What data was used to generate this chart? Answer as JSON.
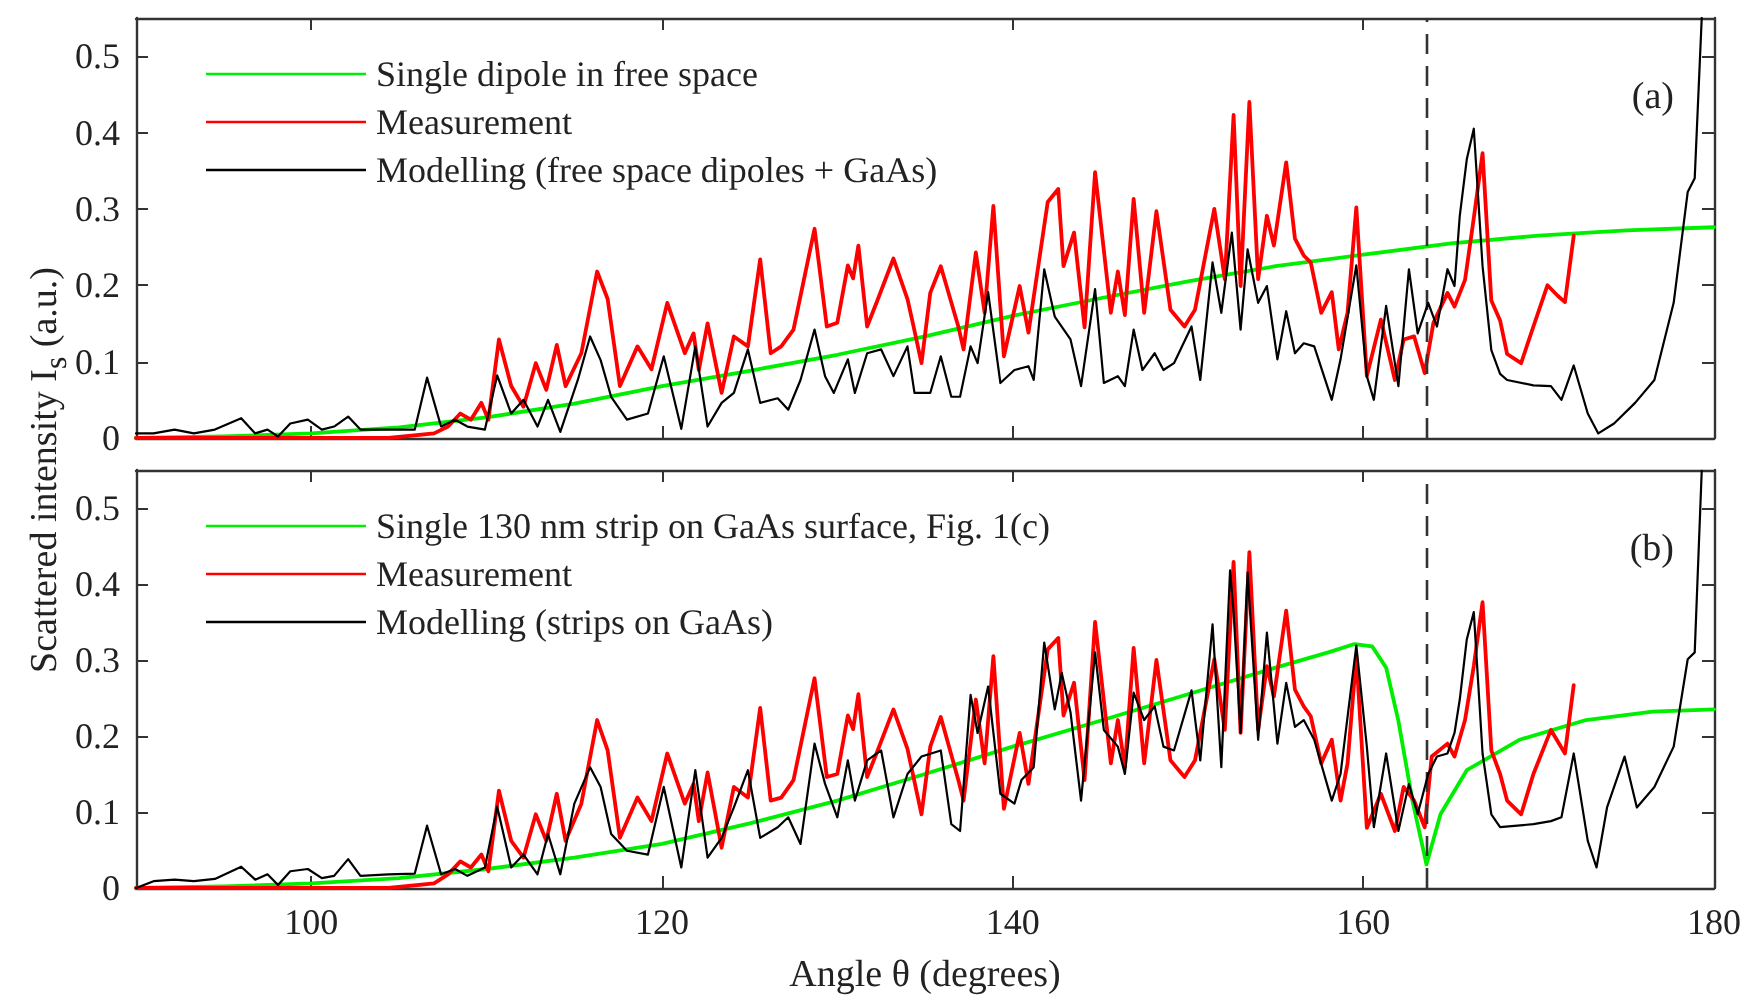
{
  "chart_data": [
    {
      "type": "line",
      "ylabel": "Scattered intensity I$_{s}$ (a.u.)",
      "annotations": [
        "(a)"
      ],
      "xlim": [
        90,
        180
      ],
      "xticks": [
        100,
        120,
        140,
        160,
        180
      ],
      "ylim": [
        0,
        0.55
      ],
      "yticks": [
        0,
        0.1,
        0.2,
        0.3,
        0.4,
        0.5
      ],
      "tick_labels": "y",
      "grid": false,
      "legend": "top left",
      "marker": "none",
      "line_style": "solid",
      "ref_lines": [
        {
          "axis": "x",
          "value": 163.6,
          "color": "#333333",
          "line_style": "dashed"
        }
      ],
      "series": [
        {
          "name": "Single dipole in free space",
          "color": "#00ee00",
          "x": [
            90,
            95,
            100,
            105,
            110,
            115,
            120,
            125,
            130,
            135,
            140,
            145,
            150,
            155,
            160,
            165,
            170,
            175,
            180
          ],
          "values": [
            0,
            0.002,
            0.006,
            0.014,
            0.027,
            0.045,
            0.068,
            0.088,
            0.109,
            0.133,
            0.16,
            0.183,
            0.205,
            0.225,
            0.24,
            0.255,
            0.265,
            0.272,
            0.276
          ]
        },
        {
          "name": "Measurement",
          "color": "#ff0000",
          "x": [
            90,
            104.4,
            107,
            107.8,
            108.5,
            109.1,
            109.7,
            110.1,
            110.7,
            111.4,
            112.1,
            112.8,
            113.4,
            114,
            114.5,
            115.4,
            116.3,
            116.9,
            117.6,
            118.6,
            119.4,
            120.3,
            121.3,
            121.8,
            122.1,
            122.6,
            123.4,
            124.1,
            124.9,
            125.6,
            126.2,
            126.8,
            127.5,
            128.7,
            129.4,
            130,
            130.6,
            130.9,
            131.2,
            131.7,
            132.3,
            133.2,
            134,
            134.3,
            134.8,
            135.3,
            135.9,
            136.9,
            137.2,
            137.9,
            138.4,
            138.9,
            139.5,
            140.4,
            140.9,
            142,
            142.6,
            142.9,
            143.5,
            144.1,
            144.7,
            145.6,
            146,
            146.4,
            146.9,
            147.5,
            148.2,
            149,
            149.8,
            150.4,
            151.5,
            152.1,
            152.6,
            153,
            153.5,
            154,
            154.5,
            154.9,
            155.6,
            156.1,
            156.6,
            157,
            157.6,
            158.2,
            158.6,
            159.1,
            159.6,
            160.2,
            161,
            161.8,
            162.3,
            162.9,
            163.5,
            164,
            164.8,
            165.2,
            165.8,
            166.3,
            166.8,
            167.3,
            167.8,
            168.2,
            169,
            169.7,
            170.5,
            171.1,
            171.5,
            172
          ],
          "values": [
            0,
            0,
            0.006,
            0.015,
            0.032,
            0.024,
            0.046,
            0.024,
            0.129,
            0.068,
            0.041,
            0.098,
            0.063,
            0.122,
            0.068,
            0.111,
            0.218,
            0.182,
            0.068,
            0.12,
            0.09,
            0.177,
            0.111,
            0.137,
            0.089,
            0.15,
            0.059,
            0.133,
            0.12,
            0.234,
            0.111,
            0.12,
            0.142,
            0.274,
            0.146,
            0.151,
            0.226,
            0.209,
            0.252,
            0.146,
            0.181,
            0.235,
            0.182,
            0.151,
            0.098,
            0.19,
            0.225,
            0.146,
            0.116,
            0.243,
            0.164,
            0.304,
            0.107,
            0.199,
            0.138,
            0.309,
            0.326,
            0.225,
            0.269,
            0.145,
            0.348,
            0.164,
            0.218,
            0.161,
            0.313,
            0.164,
            0.297,
            0.168,
            0.146,
            0.168,
            0.3,
            0.208,
            0.423,
            0.199,
            0.44,
            0.208,
            0.291,
            0.252,
            0.361,
            0.261,
            0.239,
            0.23,
            0.164,
            0.191,
            0.116,
            0.164,
            0.302,
            0.081,
            0.155,
            0.076,
            0.129,
            0.133,
            0.085,
            0.151,
            0.19,
            0.172,
            0.207,
            0.288,
            0.373,
            0.18,
            0.154,
            0.11,
            0.098,
            0.146,
            0.2,
            0.186,
            0.178,
            0.265
          ]
        },
        {
          "name": "Modelling (free space dipoles + GaAs)",
          "color": "#000000",
          "x": [
            90,
            91,
            92.2,
            93.3,
            94.5,
            96,
            96.8,
            97.5,
            98.1,
            98.8,
            99.8,
            100.6,
            101.3,
            102.1,
            102.8,
            104.4,
            105.9,
            106.6,
            107.4,
            108.2,
            108.9,
            109.9,
            110.6,
            111.4,
            112.1,
            112.9,
            113.5,
            114.2,
            115.2,
            115.9,
            116.5,
            117.1,
            118,
            119.2,
            120.1,
            121.1,
            121.9,
            122.6,
            123.4,
            124.1,
            124.9,
            125.6,
            126.6,
            127.2,
            127.9,
            128.7,
            129.3,
            129.8,
            130.6,
            131,
            131.7,
            132.5,
            133.2,
            134,
            134.4,
            135.3,
            135.9,
            136.5,
            137,
            137.6,
            138,
            138.6,
            139.3,
            140.1,
            140.9,
            141.2,
            141.8,
            142.4,
            143.3,
            143.9,
            144.7,
            145.2,
            146,
            146.4,
            146.9,
            147.4,
            148.1,
            148.6,
            149.2,
            150.2,
            150.7,
            151.4,
            151.9,
            152.5,
            153,
            153.4,
            154,
            154.5,
            155.1,
            155.6,
            156.1,
            156.6,
            157.2,
            158.2,
            158.7,
            159.6,
            160.2,
            160.6,
            161.3,
            162,
            162.6,
            163.1,
            163.7,
            164.2,
            164.8,
            165.2,
            165.5,
            165.9,
            166.3,
            166.8,
            167.3,
            167.8,
            168.2,
            169.7,
            170.7,
            171.3,
            172,
            172.8,
            173.4,
            174.3,
            175.5,
            176.6,
            177.7,
            178.5,
            178.9,
            179.3
          ],
          "values": [
            0.006,
            0.006,
            0.011,
            0.006,
            0.011,
            0.026,
            0.006,
            0.011,
            0.002,
            0.019,
            0.024,
            0.011,
            0.015,
            0.028,
            0.011,
            0.011,
            0.011,
            0.079,
            0.015,
            0.024,
            0.015,
            0.011,
            0.082,
            0.032,
            0.05,
            0.015,
            0.05,
            0.008,
            0.076,
            0.133,
            0.102,
            0.054,
            0.024,
            0.032,
            0.107,
            0.012,
            0.12,
            0.015,
            0.046,
            0.059,
            0.116,
            0.046,
            0.052,
            0.037,
            0.076,
            0.142,
            0.081,
            0.059,
            0.103,
            0.059,
            0.111,
            0.116,
            0.081,
            0.12,
            0.059,
            0.059,
            0.107,
            0.054,
            0.054,
            0.12,
            0.098,
            0.191,
            0.072,
            0.089,
            0.094,
            0.076,
            0.221,
            0.159,
            0.129,
            0.068,
            0.195,
            0.072,
            0.081,
            0.068,
            0.142,
            0.089,
            0.111,
            0.089,
            0.098,
            0.146,
            0.076,
            0.23,
            0.164,
            0.269,
            0.142,
            0.247,
            0.177,
            0.199,
            0.103,
            0.166,
            0.111,
            0.124,
            0.12,
            0.05,
            0.103,
            0.226,
            0.081,
            0.05,
            0.173,
            0.068,
            0.221,
            0.137,
            0.177,
            0.146,
            0.221,
            0.199,
            0.291,
            0.365,
            0.405,
            0.225,
            0.115,
            0.084,
            0.076,
            0.069,
            0.068,
            0.05,
            0.095,
            0.032,
            0.006,
            0.019,
            0.046,
            0.076,
            0.177,
            0.322,
            0.34,
            0.55
          ]
        }
      ]
    },
    {
      "type": "line",
      "xlabel": "Angle θ (degrees)",
      "annotations": [
        "(b)"
      ],
      "xlim": [
        90,
        180
      ],
      "xticks": [
        100,
        120,
        140,
        160,
        180
      ],
      "ylim": [
        0,
        0.55
      ],
      "yticks": [
        0,
        0.1,
        0.2,
        0.3,
        0.4,
        0.5
      ],
      "grid": false,
      "legend": "top left",
      "marker": "none",
      "line_style": "solid",
      "ref_lines": [
        {
          "axis": "x",
          "value": 163.6,
          "color": "#333333",
          "line_style": "dashed"
        }
      ],
      "series": [
        {
          "name": "Single 130 nm strip on GaAs surface, Fig. 1(c)",
          "color": "#00ee00",
          "x": [
            90,
            95,
            100,
            105,
            110,
            115,
            120,
            125,
            130,
            135,
            140,
            145,
            150,
            155,
            158,
            159.5,
            160.5,
            161.3,
            162,
            162.8,
            163.6,
            164.4,
            165.9,
            168.9,
            172.7,
            176.5,
            180
          ],
          "values": [
            0,
            0.002,
            0.006,
            0.013,
            0.025,
            0.04,
            0.058,
            0.085,
            0.115,
            0.15,
            0.186,
            0.22,
            0.255,
            0.29,
            0.31,
            0.321,
            0.318,
            0.29,
            0.22,
            0.115,
            0.031,
            0.097,
            0.155,
            0.195,
            0.221,
            0.232,
            0.235
          ]
        },
        {
          "name": "Measurement",
          "color": "#ff0000",
          "x": [
            90,
            104.4,
            107,
            107.8,
            108.5,
            109.1,
            109.7,
            110.1,
            110.7,
            111.4,
            112.1,
            112.8,
            113.4,
            114,
            114.5,
            115.4,
            116.3,
            116.9,
            117.6,
            118.6,
            119.4,
            120.3,
            121.3,
            121.8,
            122.1,
            122.6,
            123.4,
            124.1,
            124.9,
            125.6,
            126.2,
            126.8,
            127.5,
            128.7,
            129.4,
            130,
            130.6,
            130.9,
            131.2,
            131.7,
            132.3,
            133.2,
            134,
            134.8,
            135.3,
            135.9,
            136.9,
            137.2,
            137.9,
            138.4,
            138.9,
            139.5,
            140.4,
            140.9,
            142,
            142.6,
            142.9,
            143.5,
            144.1,
            144.7,
            145.6,
            146,
            146.4,
            146.9,
            147.5,
            148.2,
            149,
            149.8,
            150.4,
            151.5,
            152.1,
            152.6,
            153,
            153.5,
            154,
            154.5,
            154.9,
            155.6,
            156.1,
            156.6,
            157,
            157.6,
            158.2,
            158.7,
            159.1,
            159.6,
            160.2,
            161,
            161.8,
            162.3,
            162.9,
            163.5,
            163.9,
            164.8,
            165.2,
            165.8,
            166.3,
            166.8,
            167.3,
            167.8,
            168.2,
            169,
            169.7,
            170.7,
            171.5,
            172
          ],
          "values": [
            0,
            0,
            0.006,
            0.018,
            0.035,
            0.027,
            0.044,
            0.022,
            0.128,
            0.062,
            0.04,
            0.097,
            0.062,
            0.124,
            0.062,
            0.111,
            0.221,
            0.181,
            0.066,
            0.119,
            0.088,
            0.177,
            0.111,
            0.137,
            0.088,
            0.152,
            0.053,
            0.133,
            0.119,
            0.237,
            0.115,
            0.119,
            0.142,
            0.276,
            0.146,
            0.15,
            0.227,
            0.209,
            0.255,
            0.146,
            0.181,
            0.235,
            0.183,
            0.097,
            0.186,
            0.225,
            0.142,
            0.115,
            0.248,
            0.164,
            0.305,
            0.104,
            0.204,
            0.137,
            0.314,
            0.329,
            0.227,
            0.27,
            0.142,
            0.35,
            0.164,
            0.221,
            0.159,
            0.316,
            0.164,
            0.3,
            0.168,
            0.146,
            0.168,
            0.301,
            0.208,
            0.429,
            0.204,
            0.442,
            0.208,
            0.292,
            0.252,
            0.365,
            0.261,
            0.239,
            0.226,
            0.164,
            0.195,
            0.115,
            0.164,
            0.305,
            0.079,
            0.124,
            0.075,
            0.133,
            0.115,
            0.08,
            0.173,
            0.19,
            0.173,
            0.221,
            0.292,
            0.376,
            0.181,
            0.15,
            0.115,
            0.097,
            0.15,
            0.208,
            0.177,
            0.267
          ]
        },
        {
          "name": "Modelling (strips on GaAs)",
          "color": "#000000",
          "x": [
            90,
            91,
            92.2,
            93.3,
            94.5,
            96,
            96.8,
            97.5,
            98.1,
            98.8,
            99.8,
            100.6,
            101.3,
            102.1,
            102.8,
            104.4,
            105.9,
            106.6,
            107.4,
            108.2,
            108.9,
            109.9,
            110.6,
            111.4,
            112.1,
            112.9,
            113.5,
            114.2,
            115,
            115.9,
            116.5,
            117.1,
            118,
            119.2,
            120.1,
            121.1,
            121.9,
            122.6,
            123.4,
            124.1,
            124.9,
            125.6,
            126.6,
            127.2,
            127.9,
            128.7,
            129.3,
            130,
            130.6,
            131,
            131.7,
            132.5,
            133.2,
            134,
            134.8,
            135.9,
            136.5,
            137,
            137.6,
            138,
            138.6,
            139.3,
            140.1,
            140.5,
            141.2,
            141.8,
            142.4,
            142.8,
            143.3,
            143.9,
            144.7,
            145.2,
            146,
            146.4,
            146.9,
            147.5,
            148.1,
            148.6,
            149.2,
            150.2,
            150.7,
            151.4,
            151.9,
            152.4,
            152.6,
            153,
            153.4,
            154,
            154.5,
            155.1,
            155.6,
            156.1,
            156.6,
            157.2,
            158.2,
            158.7,
            159.6,
            160.2,
            160.6,
            161.3,
            162,
            162.6,
            163.1,
            163.7,
            164.2,
            164.8,
            165.2,
            165.5,
            165.9,
            166.3,
            166.8,
            167.3,
            167.8,
            169.7,
            170.7,
            171.3,
            172,
            172.8,
            173.3,
            173.9,
            174.9,
            175.6,
            176.6,
            177.7,
            178.5,
            178.9,
            179.3
          ],
          "values": [
            0,
            0.009,
            0.011,
            0.009,
            0.012,
            0.028,
            0.011,
            0.018,
            0.004,
            0.022,
            0.025,
            0.013,
            0.016,
            0.038,
            0.016,
            0.018,
            0.019,
            0.082,
            0.018,
            0.025,
            0.016,
            0.027,
            0.107,
            0.027,
            0.044,
            0.018,
            0.071,
            0.018,
            0.111,
            0.159,
            0.133,
            0.071,
            0.049,
            0.044,
            0.133,
            0.027,
            0.155,
            0.04,
            0.066,
            0.106,
            0.155,
            0.066,
            0.08,
            0.093,
            0.058,
            0.19,
            0.137,
            0.093,
            0.168,
            0.115,
            0.168,
            0.181,
            0.093,
            0.15,
            0.173,
            0.181,
            0.084,
            0.075,
            0.254,
            0.204,
            0.265,
            0.124,
            0.111,
            0.142,
            0.159,
            0.323,
            0.235,
            0.283,
            0.231,
            0.115,
            0.31,
            0.208,
            0.186,
            0.15,
            0.257,
            0.221,
            0.239,
            0.186,
            0.181,
            0.26,
            0.168,
            0.347,
            0.159,
            0.418,
            0.363,
            0.204,
            0.415,
            0.195,
            0.336,
            0.19,
            0.27,
            0.212,
            0.221,
            0.195,
            0.115,
            0.15,
            0.319,
            0.186,
            0.08,
            0.177,
            0.075,
            0.137,
            0.097,
            0.15,
            0.173,
            0.177,
            0.204,
            0.248,
            0.327,
            0.363,
            0.177,
            0.097,
            0.08,
            0.084,
            0.088,
            0.093,
            0.177,
            0.062,
            0.027,
            0.106,
            0.173,
            0.106,
            0.133,
            0.186,
            0.301,
            0.31,
            0.549
          ]
        }
      ]
    }
  ]
}
